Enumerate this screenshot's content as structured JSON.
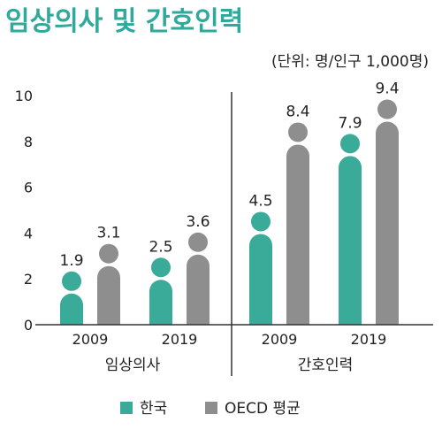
{
  "colors": {
    "korea": "#3aaa99",
    "oecd": "#8e8e8e",
    "title": "#2ea99b"
  },
  "chart_data": {
    "type": "bar",
    "title": "임상의사 및 간호인력",
    "unit_note": "(단위: 명/인구 1,000명)",
    "ylim": [
      0,
      10
    ],
    "yticks": [
      "0",
      "2",
      "4",
      "6",
      "8",
      "10"
    ],
    "groups": [
      "임상의사",
      "간호인력"
    ],
    "categories": [
      "2009",
      "2019",
      "2009",
      "2019"
    ],
    "category_group": [
      0,
      0,
      1,
      1
    ],
    "series": [
      {
        "name": "한국",
        "color": "#3aaa99",
        "values": [
          1.9,
          2.5,
          4.5,
          7.9
        ],
        "labels": [
          "1.9",
          "2.5",
          "4.5",
          "7.9"
        ]
      },
      {
        "name": "OECD 평균",
        "color": "#8e8e8e",
        "values": [
          3.1,
          3.6,
          8.4,
          9.4
        ],
        "labels": [
          "3.1",
          "3.6",
          "8.4",
          "9.4"
        ]
      }
    ],
    "grid": false,
    "legend_position": "bottom"
  }
}
